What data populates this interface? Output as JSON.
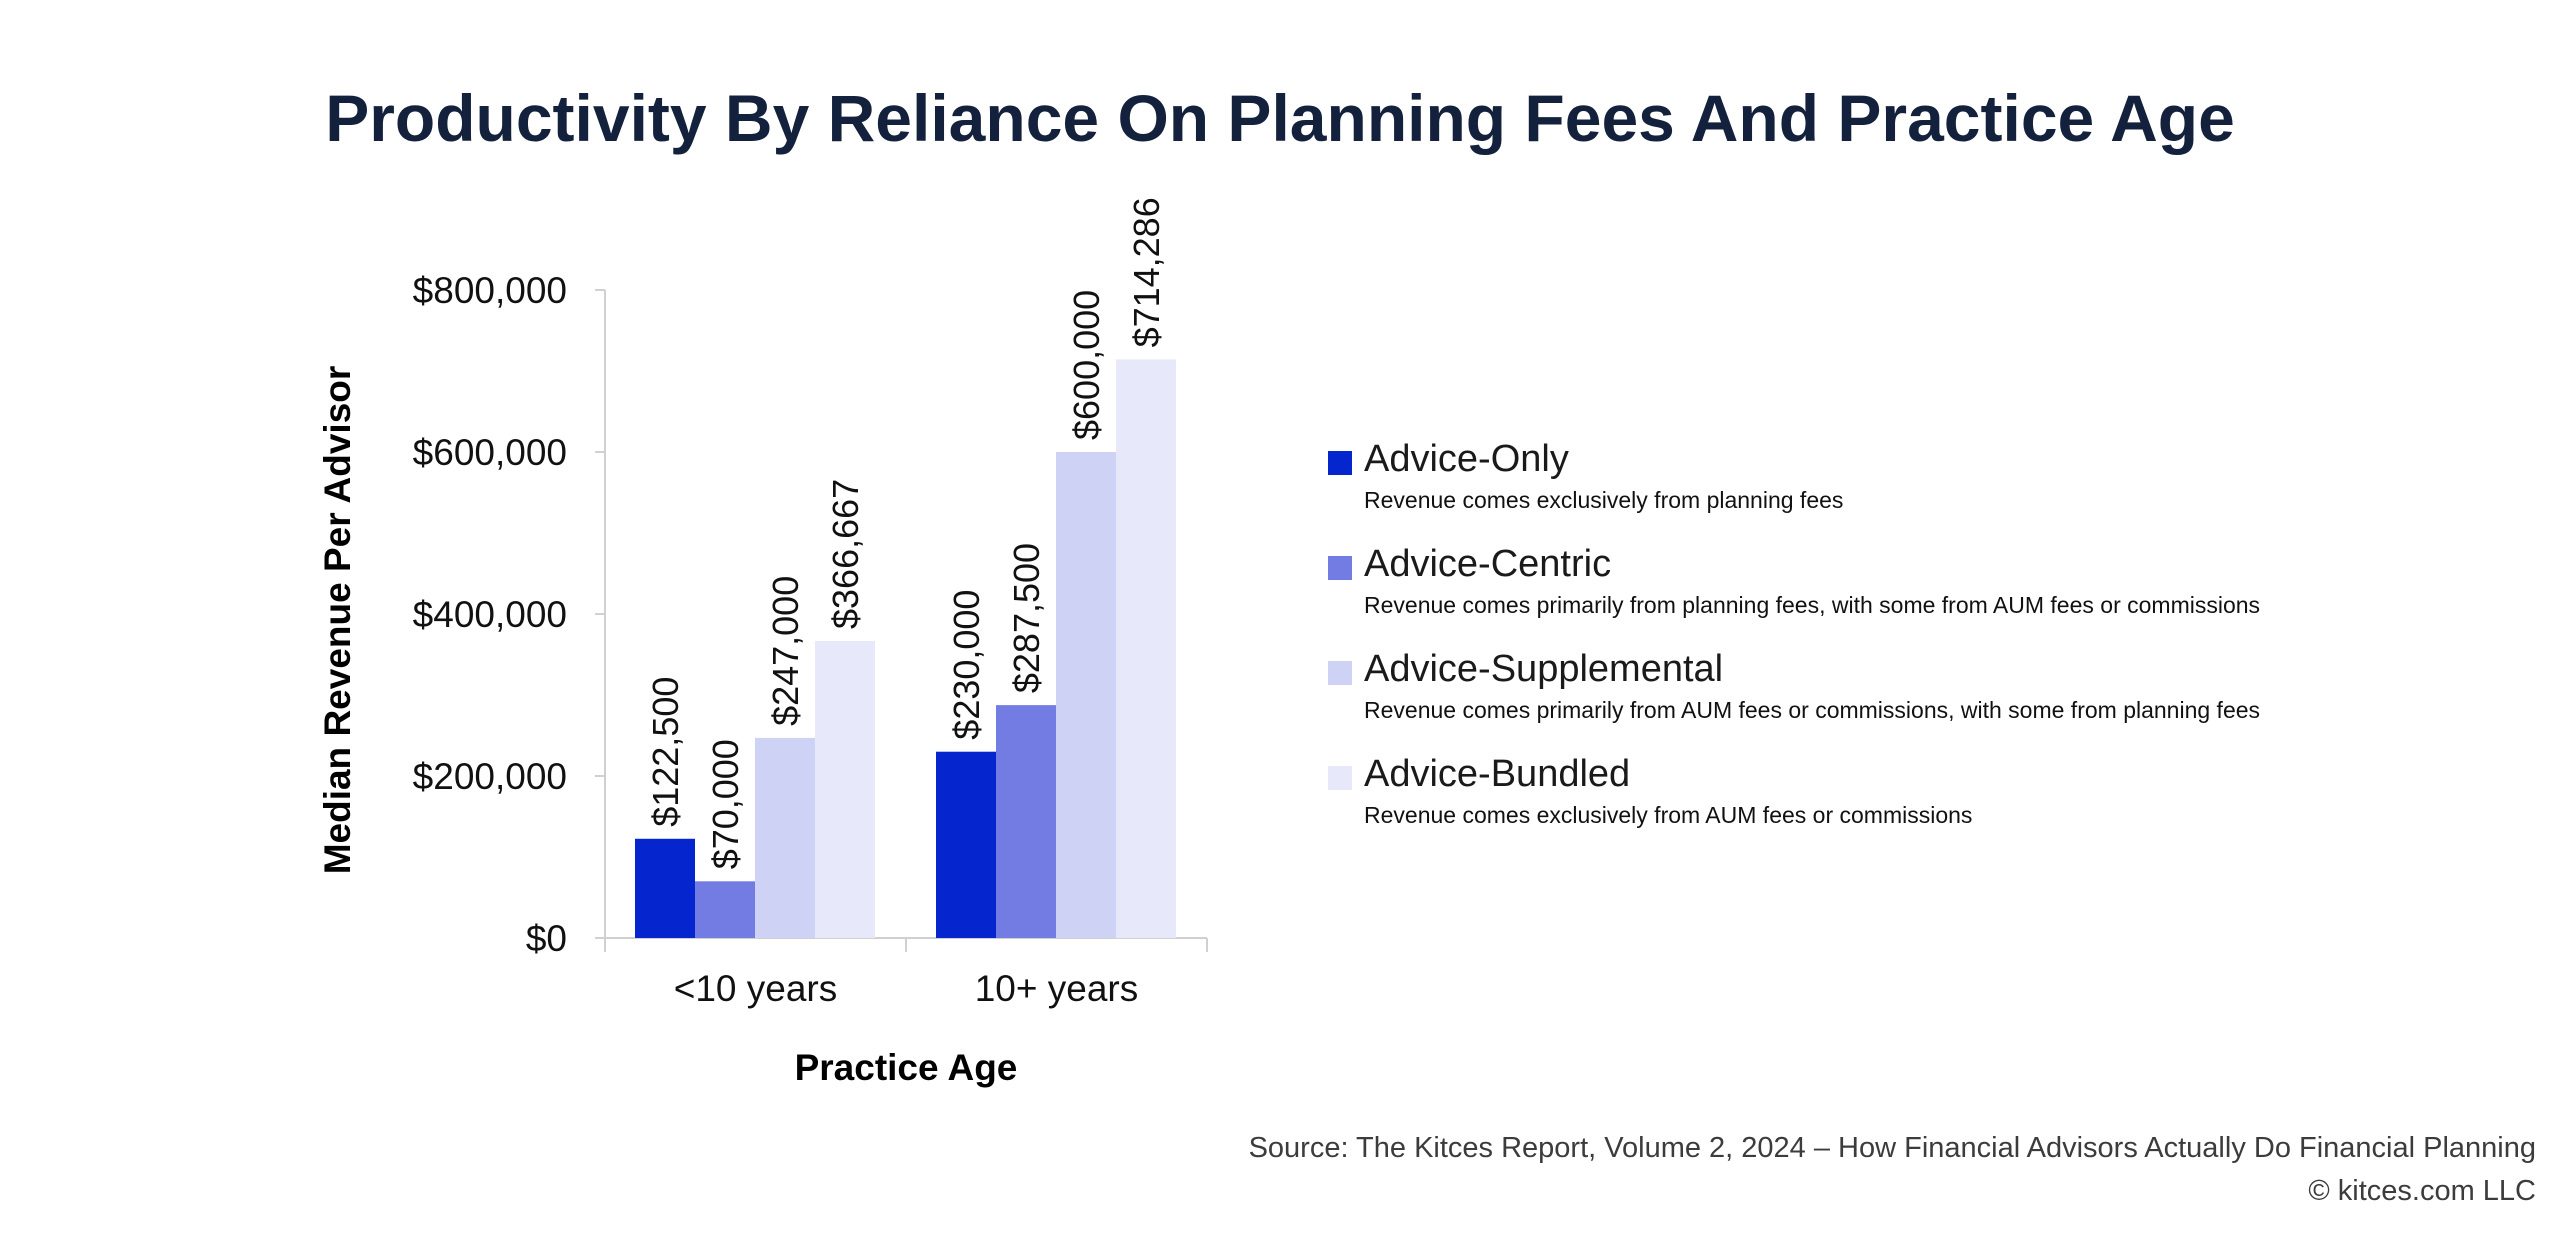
{
  "chart_data": {
    "type": "bar",
    "title": "Productivity By Reliance On Planning Fees And Practice Age",
    "xlabel": "Practice Age",
    "ylabel": "Median Revenue Per Advisor",
    "categories": [
      "<10 years",
      "10+ years"
    ],
    "ylim": [
      0,
      800000
    ],
    "y_ticks": [
      0,
      200000,
      400000,
      600000,
      800000
    ],
    "y_tick_labels": [
      "$0",
      "$200,000",
      "$400,000",
      "$600,000",
      "$800,000"
    ],
    "grid": false,
    "legend_position": "right",
    "series": [
      {
        "name": "Advice-Only",
        "description": "Revenue comes exclusively from planning fees",
        "color": "#0526cf",
        "values": [
          122500,
          230000
        ],
        "labels": [
          "$122,500",
          "$230,000"
        ]
      },
      {
        "name": "Advice-Centric",
        "description": "Revenue comes primarily from planning fees, with some from AUM fees or commissions",
        "color": "#737ce2",
        "values": [
          70000,
          287500
        ],
        "labels": [
          "$70,000",
          "$287,500"
        ]
      },
      {
        "name": "Advice-Supplemental",
        "description": "Revenue comes primarily from AUM fees or commissions, with some from planning fees",
        "color": "#ced2f5",
        "values": [
          247000,
          600000
        ],
        "labels": [
          "$247,000",
          "$600,000"
        ]
      },
      {
        "name": "Advice-Bundled",
        "description": "Revenue comes exclusively from AUM fees or commissions",
        "color": "#e7e8fa",
        "values": [
          366667,
          714286
        ],
        "labels": [
          "$366,667",
          "$714,286"
        ]
      }
    ]
  },
  "footer": {
    "source": "Source: The Kitces Report, Volume 2, 2024 – How Financial Advisors Actually Do Financial Planning",
    "copyright": "© kitces.com LLC"
  }
}
